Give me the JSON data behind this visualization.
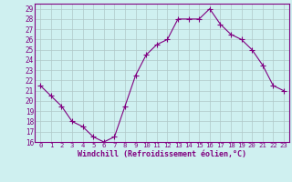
{
  "x": [
    0,
    1,
    2,
    3,
    4,
    5,
    6,
    7,
    8,
    9,
    10,
    11,
    12,
    13,
    14,
    15,
    16,
    17,
    18,
    19,
    20,
    21,
    22,
    23
  ],
  "y": [
    21.5,
    20.5,
    19.5,
    18.0,
    17.5,
    16.5,
    16.0,
    16.5,
    19.5,
    22.5,
    24.5,
    25.5,
    26.0,
    28.0,
    28.0,
    28.0,
    29.0,
    27.5,
    26.5,
    26.0,
    25.0,
    23.5,
    21.5,
    21.0
  ],
  "line_color": "#800080",
  "marker": "+",
  "marker_color": "#800080",
  "bg_color": "#cff0f0",
  "grid_color": "#b0c8c8",
  "xlabel": "Windchill (Refroidissement éolien,°C)",
  "xlim": [
    -0.5,
    23.5
  ],
  "ylim": [
    16,
    29.5
  ],
  "yticks": [
    16,
    17,
    18,
    19,
    20,
    21,
    22,
    23,
    24,
    25,
    26,
    27,
    28,
    29
  ],
  "xticks": [
    0,
    1,
    2,
    3,
    4,
    5,
    6,
    7,
    8,
    9,
    10,
    11,
    12,
    13,
    14,
    15,
    16,
    17,
    18,
    19,
    20,
    21,
    22,
    23
  ],
  "tick_color": "#800080",
  "label_color": "#800080",
  "spine_color": "#800080",
  "figsize": [
    3.2,
    2.0
  ],
  "dpi": 100
}
